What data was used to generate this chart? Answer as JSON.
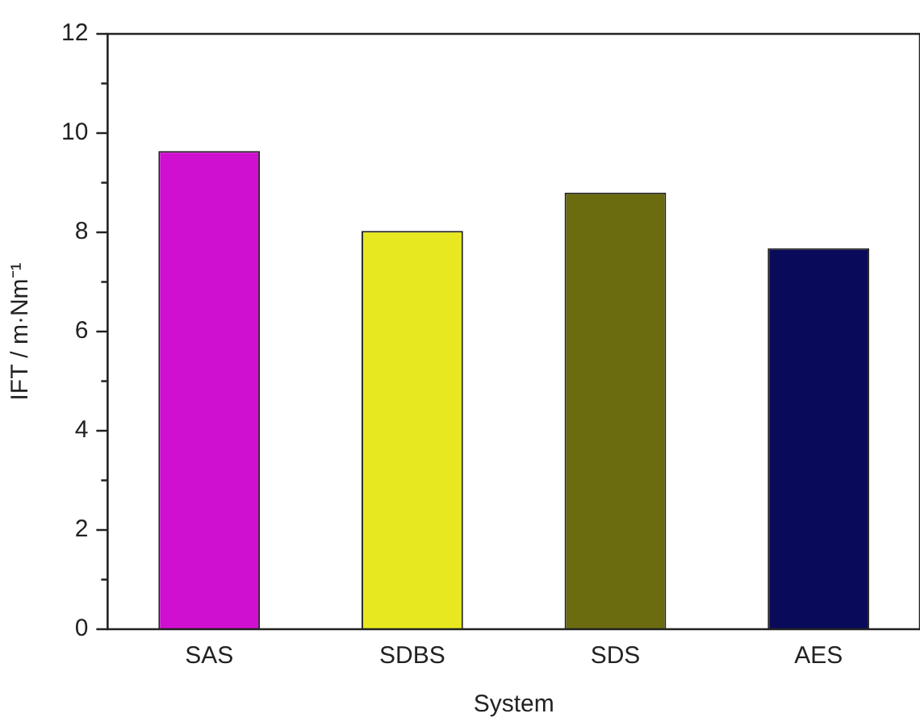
{
  "chart_data": {
    "type": "bar",
    "xlabel": "System",
    "ylabel": "IFT / m·Nm⁻¹",
    "categories": [
      "SAS",
      "SDBS",
      "SDS",
      "AES"
    ],
    "values": [
      9.64,
      8.03,
      8.8,
      7.68
    ],
    "colors": [
      "#d010d0",
      "#e8e820",
      "#6b6b10",
      "#0a0a5a"
    ],
    "ylim": [
      0,
      12
    ],
    "yticks": [
      0,
      2,
      4,
      6,
      8,
      10,
      12
    ],
    "grid": false,
    "legend": false
  }
}
